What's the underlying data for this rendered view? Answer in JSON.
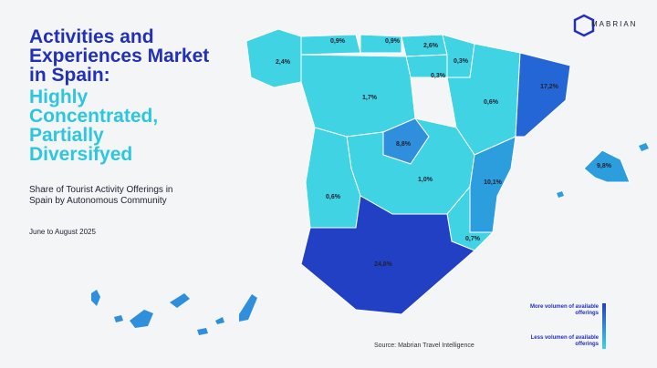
{
  "header": {
    "title": "Activities and Experiences Market in Spain:",
    "highlight": "Highly Concentrated, Partially Diversifyed",
    "subtitle": "Share of Tourist Activity Offerings in Spain by Autonomous Community",
    "period": "June to August 2025",
    "logo": "MABRIAN"
  },
  "map": {
    "regions": [
      {
        "value": 2.4,
        "label": "2,4%",
        "color": "#3fd3e4"
      },
      {
        "value": 0.9,
        "label": "0,9%",
        "color": "#3fd3e4"
      },
      {
        "value": 0.9,
        "label": "0,9%",
        "color": "#3fd3e4"
      },
      {
        "value": 2.6,
        "label": "2,6%",
        "color": "#3fd3e4"
      },
      {
        "value": 0.3,
        "label": "0,3%",
        "color": "#3fd3e4"
      },
      {
        "value": 0.3,
        "label": "0,3%",
        "color": "#3fd3e4"
      },
      {
        "value": 1.7,
        "label": "1,7%",
        "color": "#3fd3e4"
      },
      {
        "value": 0.6,
        "label": "0,6%",
        "color": "#3fd3e4"
      },
      {
        "value": 17.2,
        "label": "17,2%",
        "color": "#2466d6"
      },
      {
        "value": 8.8,
        "label": "8,8%",
        "color": "#2f8fdc"
      },
      {
        "value": 1.0,
        "label": "1,0%",
        "color": "#3fd3e4"
      },
      {
        "value": 0.6,
        "label": "0,6%",
        "color": "#3fd3e4"
      },
      {
        "value": 10.1,
        "label": "10,1%",
        "color": "#2c9ddd"
      },
      {
        "value": 0.7,
        "label": "0,7%",
        "color": "#3fd3e4"
      },
      {
        "value": 24.8,
        "label": "24,8%",
        "color": "#2140c4"
      },
      {
        "value": 9.8,
        "label": "9,8%",
        "color": "#2c9ddd"
      }
    ]
  },
  "legend": {
    "high": "More volumen of available offerings",
    "low": "Less volumen of available offerings"
  },
  "footer": {
    "source": "Source: Mabrian Travel Intelligence"
  }
}
